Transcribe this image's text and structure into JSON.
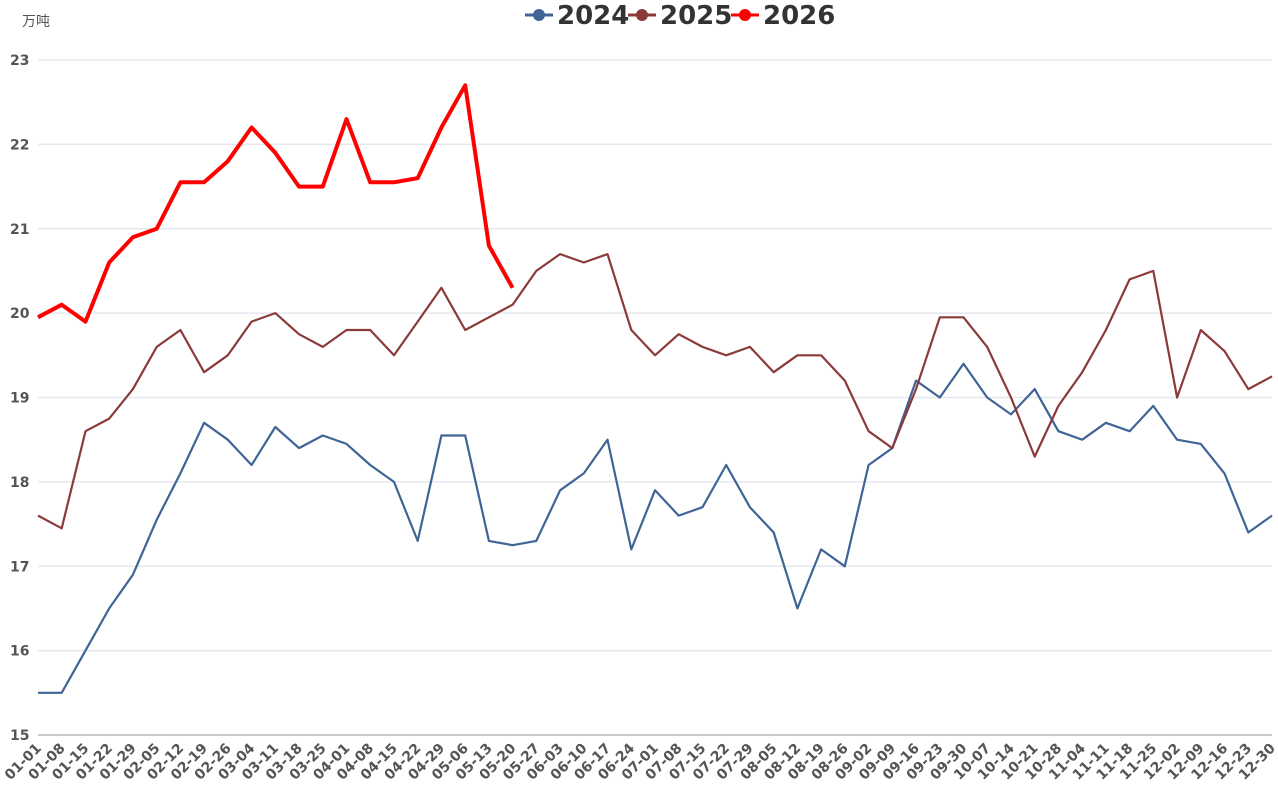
{
  "chart_data": {
    "type": "line",
    "unit_label": "万吨",
    "categories": [
      "01-01",
      "01-08",
      "01-15",
      "01-22",
      "01-29",
      "02-05",
      "02-12",
      "02-19",
      "02-26",
      "03-04",
      "03-11",
      "03-18",
      "03-25",
      "04-01",
      "04-08",
      "04-15",
      "04-22",
      "04-29",
      "05-06",
      "05-13",
      "05-20",
      "05-27",
      "06-03",
      "06-10",
      "06-17",
      "06-24",
      "07-01",
      "07-08",
      "07-15",
      "07-22",
      "07-29",
      "08-05",
      "08-12",
      "08-19",
      "08-26",
      "09-02",
      "09-09",
      "09-16",
      "09-23",
      "09-30",
      "10-07",
      "10-14",
      "10-21",
      "10-28",
      "11-04",
      "11-11",
      "11-18",
      "11-25",
      "12-02",
      "12-09",
      "12-16",
      "12-23",
      "12-30"
    ],
    "series": [
      {
        "name": "2024",
        "color": "#3f6496",
        "values": [
          15.5,
          15.5,
          16.0,
          16.5,
          16.9,
          17.55,
          18.1,
          18.7,
          18.5,
          18.2,
          18.65,
          18.4,
          18.55,
          18.45,
          18.2,
          18.0,
          17.3,
          18.55,
          18.55,
          17.3,
          17.25,
          17.3,
          17.9,
          18.1,
          18.5,
          17.2,
          17.9,
          17.6,
          17.7,
          18.2,
          17.7,
          17.4,
          16.5,
          17.2,
          17.0,
          18.2,
          18.4,
          19.2,
          19.0,
          19.4,
          19.0,
          18.8,
          19.1,
          18.6,
          18.5,
          18.7,
          18.6,
          18.9,
          18.5,
          18.45,
          18.1,
          17.4,
          17.6
        ]
      },
      {
        "name": "2025",
        "color": "#8b3a3a",
        "values": [
          17.6,
          17.45,
          18.6,
          18.75,
          19.1,
          19.6,
          19.8,
          19.3,
          19.5,
          19.9,
          20.0,
          19.75,
          19.6,
          19.8,
          19.8,
          19.5,
          19.9,
          20.3,
          19.8,
          19.95,
          20.1,
          20.5,
          20.7,
          20.6,
          20.7,
          19.8,
          19.5,
          19.75,
          19.6,
          19.5,
          19.6,
          19.3,
          19.5,
          19.5,
          19.2,
          18.6,
          18.4,
          19.1,
          19.95,
          19.95,
          19.6,
          19.0,
          18.3,
          18.9,
          19.3,
          19.8,
          20.4,
          20.5,
          19.0,
          19.8,
          19.55,
          19.1,
          19.25
        ]
      },
      {
        "name": "2026",
        "color": "#ff0000",
        "values": [
          19.95,
          20.1,
          19.9,
          20.6,
          20.9,
          21.0,
          21.55,
          21.55,
          21.8,
          22.2,
          21.9,
          21.5,
          21.5,
          22.3,
          21.55,
          21.55,
          21.6,
          22.2,
          22.7,
          20.8,
          20.3,
          null,
          null,
          null,
          null,
          null,
          null,
          null,
          null,
          null,
          null,
          null,
          null,
          null,
          null,
          null,
          null,
          null,
          null,
          null,
          null,
          null,
          null,
          null,
          null,
          null,
          null,
          null,
          null,
          null,
          null,
          null,
          null
        ]
      }
    ],
    "ylim": [
      15,
      23
    ],
    "yticks": [
      15,
      16,
      17,
      18,
      19,
      20,
      21,
      22,
      23
    ],
    "grid": true
  }
}
